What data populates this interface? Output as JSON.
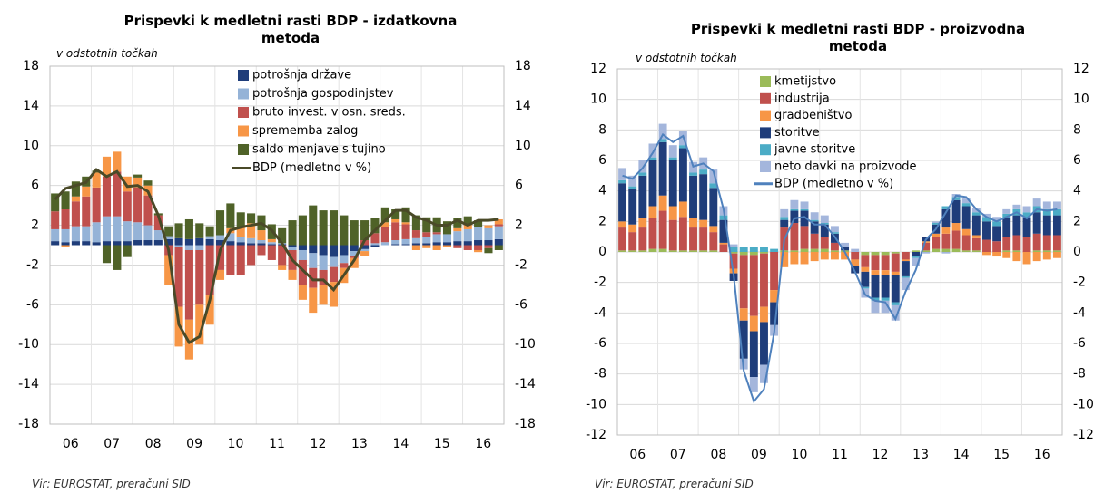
{
  "chart_data": [
    {
      "type": "bar",
      "title": "Prispevki k medletni rasti BDP - izdatkovna metoda",
      "subtitle": "v odstotnih točkah",
      "source": "Vir: EUROSTAT, preračuni SID",
      "categories": [
        null,
        "06",
        null,
        null,
        null,
        "07",
        null,
        null,
        null,
        "08",
        null,
        null,
        null,
        "09",
        null,
        null,
        null,
        "10",
        null,
        null,
        null,
        "11",
        null,
        null,
        null,
        "12",
        null,
        null,
        null,
        "13",
        null,
        null,
        null,
        "14",
        null,
        null,
        null,
        "15",
        null,
        null,
        null,
        "16",
        null,
        null
      ],
      "ylim": [
        -18,
        18
      ],
      "yticks": [
        -18,
        -14,
        -10,
        -6,
        -2,
        2,
        6,
        10,
        14,
        18
      ],
      "y2lim": [
        -18,
        18
      ],
      "y2ticks": [
        -18,
        -14,
        -10,
        -6,
        -2,
        2,
        6,
        10,
        14,
        18
      ],
      "grid": true,
      "stacked": true,
      "series": [
        {
          "name": "potrošnja države",
          "color": "#1f3d7a",
          "values": [
            0.4,
            0.3,
            0.4,
            0.4,
            0.3,
            0.4,
            0.4,
            0.4,
            0.5,
            0.5,
            0.5,
            0.6,
            0.7,
            0.6,
            0.7,
            0.6,
            0.5,
            0.4,
            0.3,
            0.2,
            0.2,
            0.1,
            0.1,
            -0.2,
            -0.5,
            -0.8,
            -1.0,
            -1.2,
            -1.0,
            -0.6,
            -0.4,
            -0.2,
            0.0,
            0.1,
            0.1,
            0.2,
            0.2,
            0.3,
            0.3,
            0.4,
            0.4,
            0.5,
            0.5,
            0.6
          ]
        },
        {
          "name": "potrošnja gospodinjstev",
          "color": "#95b3d7",
          "values": [
            1.2,
            1.3,
            1.5,
            1.5,
            2.0,
            2.5,
            2.5,
            2.0,
            1.8,
            1.5,
            1.0,
            0.3,
            -0.2,
            -0.5,
            -0.5,
            0.3,
            0.5,
            0.8,
            0.5,
            0.5,
            0.3,
            0.2,
            0.1,
            -0.3,
            -1.0,
            -1.5,
            -1.5,
            -1.0,
            -0.8,
            -0.5,
            -0.2,
            0.2,
            0.3,
            0.4,
            0.5,
            0.5,
            0.6,
            0.8,
            0.8,
            1.0,
            1.2,
            1.3,
            1.2,
            1.3
          ]
        },
        {
          "name": "bruto invest. v osn. sreds.",
          "color": "#c0504d",
          "values": [
            1.8,
            2.0,
            2.5,
            3.0,
            3.5,
            4.0,
            4.5,
            3.0,
            3.5,
            3.0,
            1.5,
            -1.0,
            -6.0,
            -7.0,
            -5.5,
            -5.0,
            -2.5,
            -3.0,
            -3.0,
            -2.0,
            -1.0,
            -1.5,
            -2.0,
            -2.0,
            -2.5,
            -2.0,
            -1.5,
            -1.5,
            -0.5,
            -0.2,
            0.5,
            1.0,
            1.5,
            1.8,
            1.5,
            0.8,
            0.5,
            0.2,
            0.0,
            -0.3,
            -0.5,
            -0.5,
            -0.3,
            0.2
          ]
        },
        {
          "name": "sprememba zalog",
          "color": "#f79646",
          "values": [
            0.0,
            -0.2,
            0.5,
            1.0,
            1.5,
            2.0,
            2.0,
            1.5,
            1.0,
            1.0,
            0.0,
            -3.0,
            -4.0,
            -4.0,
            -4.0,
            -3.0,
            -1.0,
            0.5,
            1.0,
            1.5,
            1.0,
            0.3,
            -0.5,
            -1.0,
            -1.5,
            -2.5,
            -2.0,
            -2.5,
            -1.5,
            -1.0,
            -0.5,
            0.0,
            0.5,
            0.3,
            0.2,
            -0.5,
            -0.3,
            -0.5,
            -0.2,
            0.3,
            0.5,
            -0.2,
            0.3,
            0.5
          ]
        },
        {
          "name": "saldo menjave s tujino",
          "color": "#4f6228",
          "values": [
            1.8,
            1.8,
            1.5,
            1.0,
            0.2,
            -1.8,
            -2.5,
            -1.2,
            0.3,
            0.5,
            0.2,
            1.0,
            1.5,
            2.0,
            1.5,
            1.0,
            2.5,
            2.5,
            1.5,
            1.0,
            1.5,
            1.5,
            1.5,
            2.5,
            3.0,
            4.0,
            3.5,
            3.5,
            3.0,
            2.5,
            2.0,
            1.5,
            1.5,
            1.0,
            1.5,
            1.5,
            1.5,
            1.5,
            1.3,
            1.0,
            0.8,
            0.7,
            -0.5,
            -0.5
          ]
        },
        {
          "name": "BDP (medletno v %)",
          "color": "#4a4a28",
          "type": "line",
          "values": [
            4.6,
            5.7,
            6.0,
            6.3,
            7.6,
            6.9,
            7.4,
            5.9,
            6.0,
            5.4,
            3.0,
            -0.5,
            -8.0,
            -9.8,
            -9.2,
            -5.5,
            -0.5,
            1.5,
            1.8,
            2.0,
            2.2,
            1.5,
            0.2,
            -1.5,
            -2.5,
            -3.5,
            -3.5,
            -4.5,
            -3.0,
            -1.5,
            0.5,
            1.5,
            2.5,
            3.5,
            3.5,
            2.8,
            2.5,
            2.0,
            2.0,
            2.5,
            2.0,
            2.5,
            2.5,
            2.6
          ]
        }
      ]
    },
    {
      "type": "bar",
      "title": "Prispevki k medletni rasti BDP - proizvodna metoda",
      "subtitle": "v odstotnih točkah",
      "source": "Vir: EUROSTAT, preračuni SID",
      "categories": [
        null,
        "06",
        null,
        null,
        null,
        "07",
        null,
        null,
        null,
        "08",
        null,
        null,
        null,
        "09",
        null,
        null,
        null,
        "10",
        null,
        null,
        null,
        "11",
        null,
        null,
        null,
        "12",
        null,
        null,
        null,
        "13",
        null,
        null,
        null,
        "14",
        null,
        null,
        null,
        "15",
        null,
        null,
        null,
        "16",
        null,
        null
      ],
      "ylim": [
        -12,
        12
      ],
      "yticks": [
        -12,
        -10,
        -8,
        -6,
        -4,
        -2,
        0,
        2,
        4,
        6,
        8,
        10,
        12
      ],
      "y2lim": [
        -12,
        12
      ],
      "y2ticks": [
        -12,
        -10,
        -8,
        -6,
        -4,
        -2,
        0,
        2,
        4,
        6,
        8,
        10,
        12
      ],
      "grid": true,
      "stacked": true,
      "series": [
        {
          "name": "kmetijstvo",
          "color": "#9bbb59",
          "values": [
            0.1,
            0.1,
            0.1,
            0.2,
            0.2,
            0.1,
            0.1,
            0.1,
            0.1,
            0.1,
            0.0,
            -0.1,
            -0.2,
            -0.2,
            -0.1,
            0.0,
            0.1,
            0.1,
            0.2,
            0.2,
            0.2,
            0.1,
            0.1,
            0.0,
            -0.2,
            -0.2,
            -0.2,
            -0.1,
            0.0,
            0.1,
            0.1,
            0.2,
            0.2,
            0.2,
            0.1,
            0.1,
            0.0,
            0.0,
            0.1,
            0.1,
            0.0,
            0.1,
            0.1,
            0.1
          ]
        },
        {
          "name": "industrija",
          "color": "#c0504d",
          "values": [
            1.5,
            1.2,
            1.5,
            2.0,
            2.5,
            2.0,
            2.2,
            1.5,
            1.5,
            1.2,
            0.5,
            -1.0,
            -3.5,
            -4.0,
            -3.5,
            -2.5,
            1.5,
            1.8,
            1.5,
            1.0,
            0.8,
            0.5,
            0.0,
            -0.5,
            -0.8,
            -1.0,
            -1.0,
            -1.2,
            -0.5,
            0.0,
            0.5,
            0.8,
            1.0,
            1.2,
            1.0,
            0.8,
            0.8,
            0.7,
            0.9,
            1.0,
            1.0,
            1.1,
            1.0,
            1.0
          ]
        },
        {
          "name": "gradbeništvo",
          "color": "#f79646",
          "values": [
            0.4,
            0.5,
            0.6,
            0.8,
            1.0,
            0.9,
            1.0,
            0.6,
            0.5,
            0.4,
            0.1,
            -0.3,
            -0.8,
            -1.0,
            -1.0,
            -0.8,
            -1.0,
            -0.8,
            -0.8,
            -0.6,
            -0.5,
            -0.5,
            -0.5,
            -0.4,
            -0.3,
            -0.3,
            -0.3,
            -0.2,
            -0.1,
            0.0,
            0.1,
            0.2,
            0.4,
            0.5,
            0.4,
            0.2,
            -0.2,
            -0.3,
            -0.4,
            -0.6,
            -0.8,
            -0.6,
            -0.5,
            -0.4
          ]
        },
        {
          "name": "storitve",
          "color": "#1f3d7a",
          "values": [
            2.5,
            2.3,
            2.8,
            3.0,
            3.5,
            3.0,
            3.5,
            2.8,
            3.0,
            2.5,
            1.5,
            -0.5,
            -2.5,
            -3.0,
            -2.8,
            -1.5,
            0.5,
            0.8,
            1.0,
            0.8,
            0.8,
            0.6,
            0.2,
            -0.5,
            -1.0,
            -1.5,
            -1.5,
            -1.8,
            -1.0,
            -0.3,
            0.3,
            0.6,
            1.2,
            1.5,
            1.5,
            1.3,
            1.2,
            1.0,
            1.2,
            1.3,
            1.2,
            1.4,
            1.3,
            1.3
          ]
        },
        {
          "name": "javne storitve",
          "color": "#4bacc6",
          "values": [
            0.2,
            0.2,
            0.2,
            0.2,
            0.2,
            0.2,
            0.2,
            0.2,
            0.3,
            0.3,
            0.3,
            0.3,
            0.3,
            0.3,
            0.3,
            0.2,
            0.2,
            0.1,
            0.1,
            0.1,
            0.1,
            0.1,
            0.0,
            0.0,
            -0.1,
            -0.2,
            -0.2,
            -0.2,
            -0.1,
            -0.1,
            0.0,
            0.1,
            0.2,
            0.2,
            0.2,
            0.2,
            0.3,
            0.3,
            0.3,
            0.4,
            0.4,
            0.4,
            0.4,
            0.4
          ]
        },
        {
          "name": "neto davki na proizvode",
          "color": "#a4b6dc",
          "values": [
            0.8,
            0.7,
            0.8,
            0.9,
            1.0,
            0.8,
            0.9,
            0.7,
            0.8,
            0.9,
            0.6,
            0.2,
            -0.7,
            -1.0,
            -1.2,
            -0.7,
            0.5,
            0.6,
            0.5,
            0.5,
            0.5,
            0.4,
            0.3,
            0.2,
            -0.6,
            -0.8,
            -0.8,
            -1.0,
            -0.8,
            -0.5,
            -0.1,
            0.1,
            -0.1,
            0.2,
            0.3,
            0.3,
            0.2,
            0.3,
            0.3,
            0.3,
            0.4,
            0.5,
            0.5,
            0.5
          ]
        },
        {
          "name": "BDP (medletno v %)",
          "color": "#4f81bd",
          "type": "line",
          "values": [
            5.0,
            4.8,
            5.5,
            6.5,
            7.7,
            7.2,
            7.6,
            5.6,
            5.8,
            5.3,
            2.8,
            -1.5,
            -7.8,
            -9.8,
            -9.0,
            -5.3,
            0.8,
            2.2,
            2.3,
            1.8,
            1.8,
            1.0,
            0.0,
            -1.3,
            -2.8,
            -3.2,
            -3.3,
            -4.4,
            -2.6,
            -1.2,
            0.8,
            1.5,
            2.6,
            3.7,
            3.6,
            2.8,
            2.3,
            2.0,
            2.3,
            2.6,
            2.2,
            2.8,
            2.7,
            2.8
          ]
        }
      ]
    }
  ]
}
